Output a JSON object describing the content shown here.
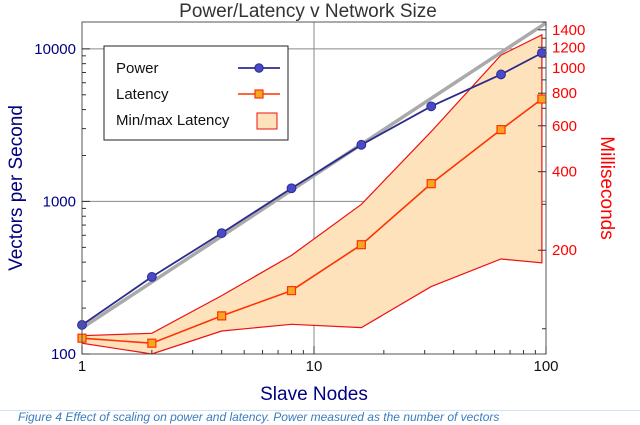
{
  "chart_data": {
    "type": "line",
    "title": "Power/Latency v Network Size",
    "xlabel": "Slave Nodes",
    "ylabel_left": "Vectors per Second",
    "ylabel_right": "Milliseconds",
    "x_scale": "log",
    "y_left_scale": "log",
    "y_right_scale": "log",
    "xlim": [
      1,
      100
    ],
    "y_left_lim": [
      100,
      15000
    ],
    "y_right_lim": [
      80,
      1500
    ],
    "x_ticks": [
      1,
      10,
      100
    ],
    "y_left_ticks": [
      100,
      1000,
      10000
    ],
    "y_right_ticks": [
      200,
      400,
      600,
      800,
      1000,
      1200,
      1400
    ],
    "legend_position": "top-left",
    "legend": [
      "Power",
      "Latency",
      "Min/max Latency"
    ],
    "colors": {
      "power": "#2b2b8f",
      "power_fill": "#4a4ac8",
      "ideal": "#aaaaaa",
      "latency": "#ff3300",
      "latency_fill": "#f5a623",
      "band_fill": "#fde2bb",
      "band_edge": "#ee1111",
      "left_axis": "#000080",
      "right_axis": "#ff0000"
    },
    "series": [
      {
        "name": "Power",
        "axis": "left",
        "x": [
          1,
          2,
          4,
          8,
          16,
          32,
          64,
          96
        ],
        "y": [
          155,
          320,
          620,
          1220,
          2350,
          4200,
          6800,
          9400
        ]
      },
      {
        "name": "Latency",
        "axis": "right",
        "x": [
          1,
          2,
          4,
          8,
          16,
          32,
          64,
          96
        ],
        "y": [
          92,
          88,
          112,
          140,
          210,
          360,
          580,
          760
        ]
      }
    ],
    "ideal_scaling": {
      "axis": "left",
      "x": [
        1,
        100
      ],
      "y": [
        148,
        14800
      ]
    },
    "minmax_band": {
      "name": "Min/max Latency",
      "axis": "right",
      "x": [
        1,
        2,
        4,
        8,
        16,
        32,
        64,
        96
      ],
      "min": [
        88,
        80,
        98,
        104,
        101,
        145,
        185,
        179
      ],
      "max": [
        94,
        96,
        134,
        191,
        300,
        570,
        1120,
        1340
      ]
    }
  },
  "caption": "Figure 4 Effect of scaling on power and latency. Power measured as the number of vectors"
}
